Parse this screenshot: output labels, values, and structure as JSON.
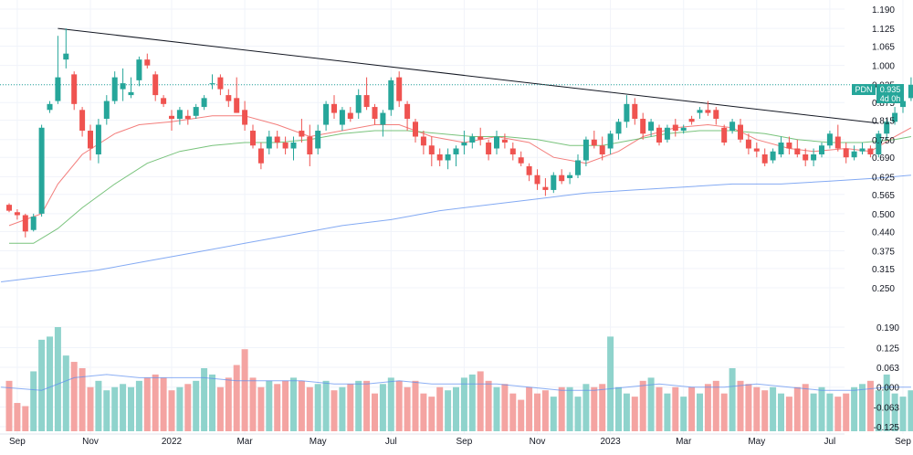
{
  "chart_data": {
    "type": "candlestick",
    "symbol": "PDN",
    "last_price": "0.935",
    "countdown": "4d 0h",
    "colors": {
      "up": "#26a69a",
      "down": "#ef5350",
      "vol_up": "#8fd3cc",
      "vol_down": "#f4a4a2",
      "ma_fast": "#ef5350",
      "ma_mid": "#4caf50",
      "ma_slow": "#5b8def",
      "vol_ma": "#5b8def",
      "trendline": "#131722",
      "price_line": "#26a69a"
    },
    "price_axis": {
      "ticks": [
        "1.190",
        "1.125",
        "1.065",
        "1.000",
        "0.935",
        "0.875",
        "0.815",
        "0.750",
        "0.690",
        "0.625",
        "0.565",
        "0.500",
        "0.440",
        "0.375",
        "0.315",
        "0.250"
      ],
      "ylim": [
        0.25,
        1.19
      ]
    },
    "volume_axis": {
      "ticks": [
        "0.190",
        "0.125",
        "0.063",
        "0.000",
        "-0.063",
        "-0.125"
      ],
      "ylim": [
        -0.125,
        0.19
      ]
    },
    "x_axis": {
      "labels": [
        {
          "text": "Sep",
          "i": 1
        },
        {
          "text": "Nov",
          "i": 10
        },
        {
          "text": "2022",
          "i": 20
        },
        {
          "text": "Mar",
          "i": 29
        },
        {
          "text": "May",
          "i": 38
        },
        {
          "text": "Jul",
          "i": 47
        },
        {
          "text": "Sep",
          "i": 56
        },
        {
          "text": "Nov",
          "i": 65
        },
        {
          "text": "2023",
          "i": 74
        },
        {
          "text": "Mar",
          "i": 83
        },
        {
          "text": "May",
          "i": 92
        },
        {
          "text": "Jul",
          "i": 101
        },
        {
          "text": "Sep",
          "i": 110
        }
      ]
    },
    "candles": [
      [
        0.53,
        0.535,
        0.505,
        0.51
      ],
      [
        0.505,
        0.515,
        0.48,
        0.495
      ],
      [
        0.495,
        0.5,
        0.42,
        0.44
      ],
      [
        0.445,
        0.5,
        0.44,
        0.49
      ],
      [
        0.5,
        0.8,
        0.49,
        0.79
      ],
      [
        0.85,
        0.88,
        0.84,
        0.87
      ],
      [
        0.88,
        1.1,
        0.87,
        0.96
      ],
      [
        1.02,
        1.125,
        0.99,
        1.04
      ],
      [
        0.97,
        0.98,
        0.85,
        0.87
      ],
      [
        0.85,
        0.86,
        0.76,
        0.78
      ],
      [
        0.78,
        0.8,
        0.68,
        0.72
      ],
      [
        0.7,
        0.82,
        0.67,
        0.8
      ],
      [
        0.82,
        0.9,
        0.8,
        0.88
      ],
      [
        0.88,
        0.98,
        0.87,
        0.96
      ],
      [
        0.92,
        0.99,
        0.88,
        0.94
      ],
      [
        0.9,
        0.96,
        0.89,
        0.91
      ],
      [
        0.95,
        1.03,
        0.93,
        1.02
      ],
      [
        1.02,
        1.04,
        0.99,
        1.0
      ],
      [
        0.97,
        0.98,
        0.88,
        0.9
      ],
      [
        0.89,
        0.9,
        0.86,
        0.87
      ],
      [
        0.83,
        0.85,
        0.78,
        0.82
      ],
      [
        0.82,
        0.86,
        0.8,
        0.85
      ],
      [
        0.83,
        0.85,
        0.8,
        0.82
      ],
      [
        0.83,
        0.87,
        0.82,
        0.86
      ],
      [
        0.86,
        0.9,
        0.85,
        0.89
      ],
      [
        0.94,
        0.97,
        0.92,
        0.94
      ],
      [
        0.96,
        0.97,
        0.9,
        0.92
      ],
      [
        0.9,
        0.92,
        0.86,
        0.88
      ],
      [
        0.89,
        0.96,
        0.84,
        0.84
      ],
      [
        0.85,
        0.88,
        0.78,
        0.8
      ],
      [
        0.78,
        0.8,
        0.72,
        0.73
      ],
      [
        0.72,
        0.74,
        0.65,
        0.67
      ],
      [
        0.72,
        0.78,
        0.7,
        0.76
      ],
      [
        0.76,
        0.78,
        0.72,
        0.74
      ],
      [
        0.74,
        0.76,
        0.7,
        0.72
      ],
      [
        0.72,
        0.76,
        0.68,
        0.74
      ],
      [
        0.78,
        0.82,
        0.74,
        0.76
      ],
      [
        0.76,
        0.8,
        0.66,
        0.7
      ],
      [
        0.72,
        0.8,
        0.7,
        0.78
      ],
      [
        0.8,
        0.88,
        0.78,
        0.87
      ],
      [
        0.87,
        0.9,
        0.82,
        0.84
      ],
      [
        0.8,
        0.86,
        0.78,
        0.85
      ],
      [
        0.84,
        0.86,
        0.81,
        0.82
      ],
      [
        0.84,
        0.92,
        0.82,
        0.9
      ],
      [
        0.9,
        0.96,
        0.85,
        0.86
      ],
      [
        0.86,
        0.87,
        0.8,
        0.82
      ],
      [
        0.8,
        0.85,
        0.76,
        0.84
      ],
      [
        0.85,
        0.96,
        0.83,
        0.95
      ],
      [
        0.96,
        0.98,
        0.86,
        0.88
      ],
      [
        0.87,
        0.88,
        0.78,
        0.82
      ],
      [
        0.81,
        0.82,
        0.74,
        0.76
      ],
      [
        0.76,
        0.78,
        0.7,
        0.73
      ],
      [
        0.73,
        0.76,
        0.66,
        0.7
      ],
      [
        0.7,
        0.72,
        0.66,
        0.68
      ],
      [
        0.68,
        0.72,
        0.65,
        0.7
      ],
      [
        0.7,
        0.73,
        0.66,
        0.72
      ],
      [
        0.73,
        0.78,
        0.7,
        0.74
      ],
      [
        0.74,
        0.77,
        0.72,
        0.76
      ],
      [
        0.76,
        0.79,
        0.73,
        0.75
      ],
      [
        0.74,
        0.75,
        0.68,
        0.7
      ],
      [
        0.72,
        0.78,
        0.7,
        0.76
      ],
      [
        0.75,
        0.77,
        0.72,
        0.74
      ],
      [
        0.72,
        0.74,
        0.68,
        0.7
      ],
      [
        0.69,
        0.71,
        0.66,
        0.67
      ],
      [
        0.66,
        0.67,
        0.61,
        0.63
      ],
      [
        0.63,
        0.65,
        0.58,
        0.6
      ],
      [
        0.59,
        0.62,
        0.56,
        0.58
      ],
      [
        0.58,
        0.64,
        0.57,
        0.63
      ],
      [
        0.63,
        0.65,
        0.6,
        0.61
      ],
      [
        0.62,
        0.64,
        0.6,
        0.63
      ],
      [
        0.63,
        0.7,
        0.62,
        0.68
      ],
      [
        0.68,
        0.76,
        0.66,
        0.75
      ],
      [
        0.75,
        0.78,
        0.72,
        0.73
      ],
      [
        0.73,
        0.76,
        0.68,
        0.7
      ],
      [
        0.72,
        0.78,
        0.7,
        0.77
      ],
      [
        0.77,
        0.82,
        0.75,
        0.81
      ],
      [
        0.81,
        0.9,
        0.79,
        0.87
      ],
      [
        0.87,
        0.89,
        0.8,
        0.82
      ],
      [
        0.82,
        0.84,
        0.75,
        0.77
      ],
      [
        0.78,
        0.82,
        0.76,
        0.81
      ],
      [
        0.79,
        0.8,
        0.73,
        0.74
      ],
      [
        0.75,
        0.8,
        0.74,
        0.79
      ],
      [
        0.8,
        0.82,
        0.76,
        0.78
      ],
      [
        0.78,
        0.8,
        0.77,
        0.79
      ],
      [
        0.82,
        0.83,
        0.8,
        0.81
      ],
      [
        0.84,
        0.86,
        0.82,
        0.85
      ],
      [
        0.85,
        0.88,
        0.83,
        0.84
      ],
      [
        0.85,
        0.86,
        0.8,
        0.82
      ],
      [
        0.79,
        0.8,
        0.73,
        0.74
      ],
      [
        0.78,
        0.82,
        0.77,
        0.81
      ],
      [
        0.8,
        0.82,
        0.74,
        0.75
      ],
      [
        0.75,
        0.77,
        0.7,
        0.72
      ],
      [
        0.72,
        0.74,
        0.69,
        0.71
      ],
      [
        0.7,
        0.72,
        0.66,
        0.67
      ],
      [
        0.68,
        0.72,
        0.67,
        0.71
      ],
      [
        0.7,
        0.76,
        0.69,
        0.74
      ],
      [
        0.74,
        0.76,
        0.7,
        0.72
      ],
      [
        0.72,
        0.75,
        0.69,
        0.7
      ],
      [
        0.7,
        0.72,
        0.66,
        0.68
      ],
      [
        0.68,
        0.72,
        0.66,
        0.7
      ],
      [
        0.7,
        0.74,
        0.69,
        0.73
      ],
      [
        0.73,
        0.78,
        0.72,
        0.77
      ],
      [
        0.76,
        0.8,
        0.71,
        0.72
      ],
      [
        0.72,
        0.74,
        0.67,
        0.69
      ],
      [
        0.69,
        0.73,
        0.68,
        0.71
      ],
      [
        0.71,
        0.74,
        0.7,
        0.72
      ],
      [
        0.72,
        0.73,
        0.69,
        0.7
      ],
      [
        0.7,
        0.78,
        0.69,
        0.77
      ],
      [
        0.77,
        0.82,
        0.75,
        0.81
      ],
      [
        0.81,
        0.86,
        0.8,
        0.84
      ],
      [
        0.86,
        0.9,
        0.84,
        0.88
      ],
      [
        0.89,
        0.96,
        0.88,
        0.935
      ]
    ],
    "volumes": [
      0.02,
      -0.05,
      -0.06,
      0.05,
      0.15,
      0.16,
      0.19,
      0.1,
      0.08,
      0.06,
      0.0,
      0.02,
      -0.01,
      0.0,
      0.01,
      0.0,
      0.02,
      0.03,
      0.04,
      0.03,
      -0.01,
      0.0,
      0.01,
      0.02,
      0.06,
      0.04,
      0.0,
      0.03,
      0.07,
      0.12,
      0.03,
      0.0,
      0.02,
      0.01,
      0.02,
      0.03,
      0.02,
      0.0,
      0.01,
      0.02,
      -0.01,
      0.0,
      0.01,
      0.02,
      0.02,
      -0.02,
      0.01,
      0.03,
      0.02,
      0.0,
      0.02,
      -0.02,
      -0.03,
      0.0,
      -0.01,
      0.0,
      0.03,
      0.04,
      0.05,
      0.02,
      0.0,
      0.01,
      -0.02,
      -0.04,
      0.0,
      -0.02,
      -0.01,
      -0.03,
      0.0,
      0.0,
      -0.03,
      0.01,
      0.0,
      0.01,
      0.16,
      0.0,
      -0.02,
      -0.03,
      0.02,
      0.03,
      0.0,
      -0.02,
      0.0,
      -0.03,
      0.0,
      -0.02,
      0.01,
      0.02,
      -0.02,
      0.06,
      0.02,
      0.01,
      0.0,
      -0.01,
      0.0,
      -0.02,
      -0.03,
      0.0,
      0.01,
      -0.02,
      0.0,
      -0.02,
      -0.03,
      -0.02,
      0.0,
      0.01,
      0.02,
      -0.01,
      0.04,
      -0.02,
      -0.03,
      -0.01
    ],
    "overlay_series": [
      {
        "key": "ma_fast",
        "points": [
          [
            0,
            0.46
          ],
          [
            4,
            0.5
          ],
          [
            6,
            0.6
          ],
          [
            9,
            0.7
          ],
          [
            13,
            0.77
          ],
          [
            16,
            0.8
          ],
          [
            20,
            0.81
          ],
          [
            25,
            0.83
          ],
          [
            29,
            0.83
          ],
          [
            33,
            0.8
          ],
          [
            37,
            0.76
          ],
          [
            41,
            0.78
          ],
          [
            45,
            0.8
          ],
          [
            48,
            0.8
          ],
          [
            52,
            0.76
          ],
          [
            56,
            0.74
          ],
          [
            60,
            0.76
          ],
          [
            64,
            0.74
          ],
          [
            67,
            0.69
          ],
          [
            71,
            0.67
          ],
          [
            75,
            0.71
          ],
          [
            78,
            0.76
          ],
          [
            82,
            0.79
          ],
          [
            86,
            0.8
          ],
          [
            89,
            0.79
          ],
          [
            92,
            0.75
          ],
          [
            96,
            0.72
          ],
          [
            99,
            0.71
          ],
          [
            103,
            0.72
          ],
          [
            106,
            0.71
          ],
          [
            109,
            0.76
          ],
          [
            111,
            0.79
          ]
        ]
      },
      {
        "key": "ma_mid",
        "points": [
          [
            0,
            0.4
          ],
          [
            3,
            0.4
          ],
          [
            6,
            0.45
          ],
          [
            9,
            0.52
          ],
          [
            13,
            0.6
          ],
          [
            17,
            0.67
          ],
          [
            21,
            0.71
          ],
          [
            25,
            0.73
          ],
          [
            29,
            0.74
          ],
          [
            33,
            0.74
          ],
          [
            37,
            0.75
          ],
          [
            41,
            0.77
          ],
          [
            45,
            0.78
          ],
          [
            49,
            0.78
          ],
          [
            53,
            0.77
          ],
          [
            57,
            0.76
          ],
          [
            61,
            0.76
          ],
          [
            65,
            0.75
          ],
          [
            69,
            0.73
          ],
          [
            73,
            0.73
          ],
          [
            77,
            0.75
          ],
          [
            81,
            0.77
          ],
          [
            85,
            0.78
          ],
          [
            89,
            0.78
          ],
          [
            93,
            0.77
          ],
          [
            97,
            0.75
          ],
          [
            101,
            0.74
          ],
          [
            105,
            0.74
          ],
          [
            109,
            0.75
          ],
          [
            111,
            0.76
          ]
        ]
      },
      {
        "key": "ma_slow",
        "points": [
          [
            -1,
            0.27
          ],
          [
            5,
            0.29
          ],
          [
            11,
            0.31
          ],
          [
            17,
            0.34
          ],
          [
            23,
            0.37
          ],
          [
            29,
            0.4
          ],
          [
            35,
            0.43
          ],
          [
            41,
            0.46
          ],
          [
            47,
            0.48
          ],
          [
            53,
            0.51
          ],
          [
            59,
            0.53
          ],
          [
            65,
            0.55
          ],
          [
            71,
            0.57
          ],
          [
            77,
            0.58
          ],
          [
            83,
            0.59
          ],
          [
            89,
            0.6
          ],
          [
            95,
            0.6
          ],
          [
            101,
            0.61
          ],
          [
            107,
            0.62
          ],
          [
            111,
            0.63
          ]
        ]
      }
    ],
    "trendline": [
      [
        6,
        1.125
      ],
      [
        107,
        0.805
      ]
    ],
    "volume_ma": [
      [
        -1,
        0.0
      ],
      [
        4,
        -0.01
      ],
      [
        8,
        0.03
      ],
      [
        12,
        0.04
      ],
      [
        16,
        0.03
      ],
      [
        20,
        0.03
      ],
      [
        24,
        0.03
      ],
      [
        28,
        0.02
      ],
      [
        32,
        0.02
      ],
      [
        36,
        0.02
      ],
      [
        40,
        0.01
      ],
      [
        44,
        0.01
      ],
      [
        48,
        0.02
      ],
      [
        52,
        0.01
      ],
      [
        56,
        0.01
      ],
      [
        60,
        0.01
      ],
      [
        64,
        0.0
      ],
      [
        68,
        -0.01
      ],
      [
        72,
        -0.01
      ],
      [
        76,
        0.0
      ],
      [
        80,
        0.01
      ],
      [
        84,
        0.0
      ],
      [
        88,
        0.0
      ],
      [
        92,
        0.01
      ],
      [
        96,
        0.0
      ],
      [
        100,
        -0.01
      ],
      [
        104,
        -0.01
      ],
      [
        108,
        0.0
      ],
      [
        111,
        0.0
      ]
    ]
  }
}
